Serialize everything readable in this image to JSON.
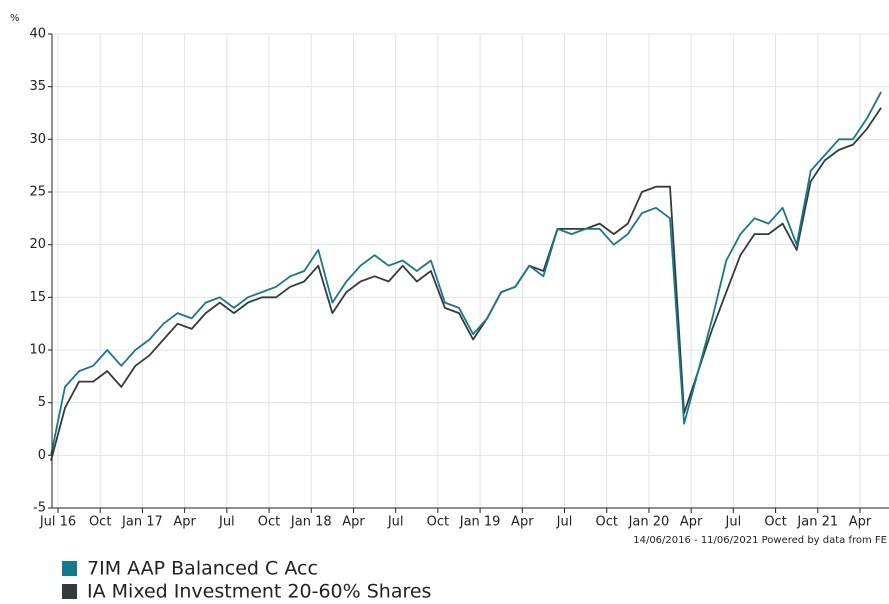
{
  "chart_data": {
    "type": "line",
    "y_unit": "%",
    "footer": "14/06/2016 - 11/06/2021 Powered by data from FE",
    "x": [
      "2016-06",
      "2016-07",
      "2016-08",
      "2016-09",
      "2016-10",
      "2016-11",
      "2016-12",
      "2017-01",
      "2017-02",
      "2017-03",
      "2017-04",
      "2017-05",
      "2017-06",
      "2017-07",
      "2017-08",
      "2017-09",
      "2017-10",
      "2017-11",
      "2017-12",
      "2018-01",
      "2018-02",
      "2018-03",
      "2018-04",
      "2018-05",
      "2018-06",
      "2018-07",
      "2018-08",
      "2018-09",
      "2018-10",
      "2018-11",
      "2018-12",
      "2019-01",
      "2019-02",
      "2019-03",
      "2019-04",
      "2019-05",
      "2019-06",
      "2019-07",
      "2019-08",
      "2019-09",
      "2019-10",
      "2019-11",
      "2019-12",
      "2020-01",
      "2020-02",
      "2020-03",
      "2020-04",
      "2020-05",
      "2020-06",
      "2020-07",
      "2020-08",
      "2020-09",
      "2020-10",
      "2020-11",
      "2020-12",
      "2021-01",
      "2021-02",
      "2021-03",
      "2021-04",
      "2021-05"
    ],
    "series": [
      {
        "name": "7IM AAP Balanced C Acc",
        "color": "#137a8c",
        "values": [
          0,
          6.5,
          8,
          8.5,
          10,
          8.5,
          10,
          11,
          12.5,
          13.5,
          13,
          14.5,
          15,
          14,
          15,
          15.5,
          16,
          17,
          17.5,
          19.5,
          14.5,
          16.5,
          18,
          19,
          18,
          18.5,
          17.5,
          18.5,
          14.5,
          14,
          11.5,
          13,
          15.5,
          16,
          18,
          17,
          21.5,
          21,
          21.5,
          21.5,
          20,
          21,
          23,
          23.5,
          22.5,
          3,
          8,
          13,
          18.5,
          21,
          22.5,
          22,
          23.5,
          20,
          27,
          28.5,
          30,
          30,
          32,
          34.5
        ]
      },
      {
        "name": "IA Mixed Investment 20-60% Shares",
        "color": "#333b3b",
        "values": [
          -0.5,
          4.5,
          7,
          7,
          8,
          6.5,
          8.5,
          9.5,
          11,
          12.5,
          12,
          13.5,
          14.5,
          13.5,
          14.5,
          15,
          15,
          16,
          16.5,
          18,
          13.5,
          15.5,
          16.5,
          17,
          16.5,
          18,
          16.5,
          17.5,
          14,
          13.5,
          11,
          13,
          15.5,
          16,
          18,
          17.5,
          21.5,
          21.5,
          21.5,
          22,
          21,
          22,
          25,
          25.5,
          25.5,
          4,
          8,
          12,
          15.5,
          19,
          21,
          21,
          22,
          19.5,
          26,
          28,
          29,
          29.5,
          31,
          33
        ]
      }
    ],
    "xticks": [
      {
        "value": "2016-07",
        "label": "Jul 16"
      },
      {
        "value": "2016-10",
        "label": "Oct"
      },
      {
        "value": "2017-01",
        "label": "Jan 17"
      },
      {
        "value": "2017-04",
        "label": "Apr"
      },
      {
        "value": "2017-07",
        "label": "Jul"
      },
      {
        "value": "2017-10",
        "label": "Oct"
      },
      {
        "value": "2018-01",
        "label": "Jan 18"
      },
      {
        "value": "2018-04",
        "label": "Apr"
      },
      {
        "value": "2018-07",
        "label": "Jul"
      },
      {
        "value": "2018-10",
        "label": "Oct"
      },
      {
        "value": "2019-01",
        "label": "Jan 19"
      },
      {
        "value": "2019-04",
        "label": "Apr"
      },
      {
        "value": "2019-07",
        "label": "Jul"
      },
      {
        "value": "2019-10",
        "label": "Oct"
      },
      {
        "value": "2020-01",
        "label": "Jan 20"
      },
      {
        "value": "2020-04",
        "label": "Apr"
      },
      {
        "value": "2020-07",
        "label": "Jul"
      },
      {
        "value": "2020-10",
        "label": "Oct"
      },
      {
        "value": "2021-01",
        "label": "Jan 21"
      },
      {
        "value": "2021-04",
        "label": "Apr"
      }
    ],
    "ylim": [
      -5,
      40
    ],
    "yticks": [
      -5,
      0,
      5,
      10,
      15,
      20,
      25,
      30,
      35,
      40
    ],
    "grid": true
  }
}
